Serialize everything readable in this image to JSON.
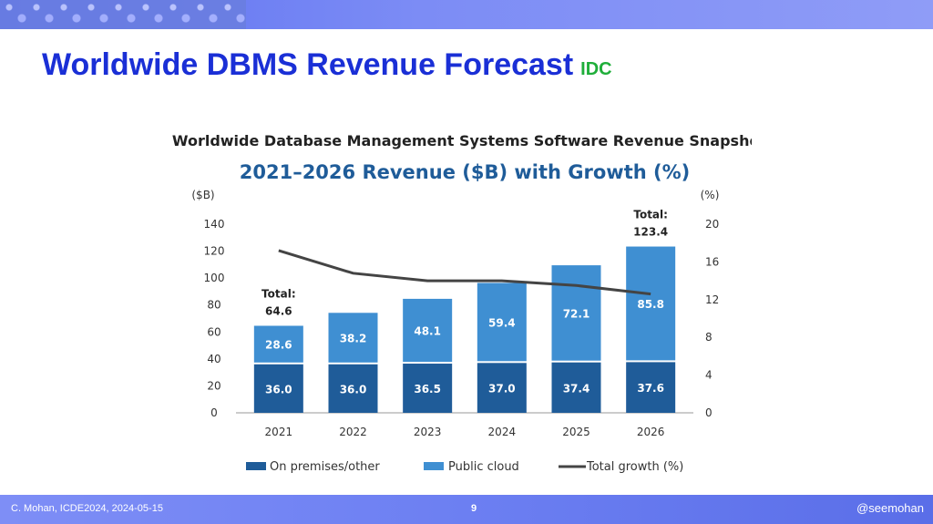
{
  "slide": {
    "title": "Worldwide DBMS Revenue Forecast",
    "source": "IDC",
    "footer_left": "C. Mohan, ICDE2024, 2024-05-15",
    "page_number": "9",
    "footer_right": "@seemohan"
  },
  "colors": {
    "title": "#1a2fd6",
    "source": "#1fae3a",
    "on_premises": "#1f5c99",
    "public_cloud": "#3f8fd2",
    "growth_line": "#444444",
    "chart_subtitle": "#1f5c99"
  },
  "chart_data": {
    "type": "bar",
    "stacked": true,
    "title": "Worldwide Database Management Systems Software Revenue Snapshot",
    "subtitle": "2021–2026 Revenue ($B) with Growth (%)",
    "ylabel": "($B)",
    "y2label": "(%)",
    "ylim": [
      0,
      140
    ],
    "y2lim": [
      0,
      20
    ],
    "yticks": [
      0,
      20,
      40,
      60,
      80,
      100,
      120,
      140
    ],
    "y2ticks": [
      0,
      4,
      8,
      12,
      16,
      20
    ],
    "categories": [
      "2021",
      "2022",
      "2023",
      "2024",
      "2025",
      "2026"
    ],
    "series": [
      {
        "name": "On premises/other",
        "values": [
          36.0,
          36.0,
          36.5,
          37.0,
          37.4,
          37.6
        ],
        "labels": [
          "36.0",
          "36.0",
          "36.5",
          "37.0",
          "37.4",
          "37.6"
        ]
      },
      {
        "name": "Public cloud",
        "values": [
          28.6,
          38.2,
          48.1,
          59.4,
          72.1,
          85.8
        ],
        "labels": [
          "28.6",
          "38.2",
          "48.1",
          "59.4",
          "72.1",
          "85.8"
        ]
      }
    ],
    "line_series": {
      "name": "Total growth (%)",
      "values": [
        17.2,
        14.8,
        14.0,
        14.0,
        13.5,
        12.6
      ]
    },
    "total_label": "Total:",
    "total_annotations": [
      {
        "category": "2021",
        "value": "64.6"
      },
      {
        "category": "2026",
        "value": "123.4"
      }
    ],
    "legend_position": "bottom",
    "grid": false
  }
}
